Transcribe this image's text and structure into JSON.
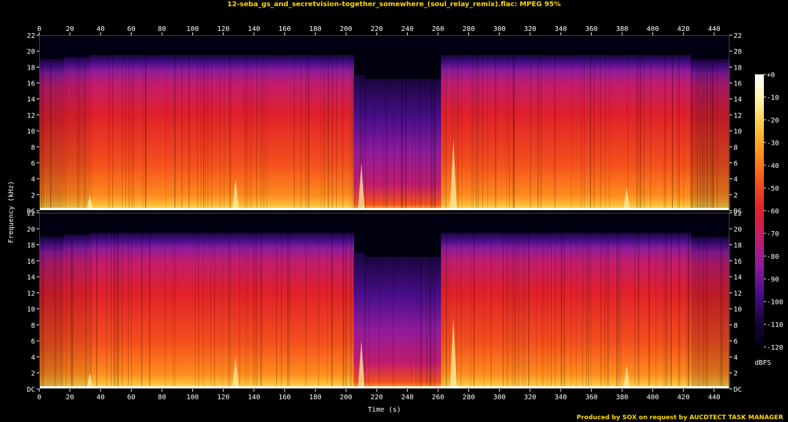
{
  "title": "12-seba_gs_and_secretvision-together_somewhere_(soul_relay_remix).flac: MPEG 95%",
  "credit": "Produced by SOX on request by AUCDTECT TASK MANAGER",
  "chart_data": {
    "type": "heatmap",
    "xlabel": "Time (s)",
    "ylabel": "Frequency (kHz)",
    "xlim": [
      0,
      450
    ],
    "ylim": [
      0,
      22
    ],
    "x_ticks": [
      "0",
      "20",
      "40",
      "60",
      "80",
      "100",
      "120",
      "140",
      "160",
      "180",
      "200",
      "220",
      "240",
      "260",
      "280",
      "300",
      "320",
      "340",
      "360",
      "380",
      "400",
      "420",
      "440"
    ],
    "y_ticks": [
      "DC",
      "2",
      "4",
      "6",
      "8",
      "10",
      "12",
      "14",
      "16",
      "18",
      "20",
      "22"
    ],
    "channels": 2,
    "colorbar": {
      "label": "dBFS",
      "ticks": [
        "+0",
        "-10",
        "-20",
        "-30",
        "-40",
        "-50",
        "-60",
        "-70",
        "-80",
        "-90",
        "-100",
        "-110",
        "-120"
      ],
      "range": [
        -120,
        0
      ]
    },
    "segments": [
      {
        "t_start": 0,
        "t_end": 16,
        "cutoff_khz": 19.0,
        "level": "medium"
      },
      {
        "t_start": 16,
        "t_end": 33,
        "cutoff_khz": 19.3,
        "level": "medium-high"
      },
      {
        "t_start": 33,
        "t_end": 205,
        "cutoff_khz": 19.5,
        "level": "high"
      },
      {
        "t_start": 205,
        "t_end": 212,
        "cutoff_khz": 17.0,
        "level": "transition"
      },
      {
        "t_start": 212,
        "t_end": 262,
        "cutoff_khz": 16.5,
        "level": "low"
      },
      {
        "t_start": 262,
        "t_end": 425,
        "cutoff_khz": 19.5,
        "level": "high"
      },
      {
        "t_start": 425,
        "t_end": 450,
        "cutoff_khz": 19.0,
        "level": "medium"
      }
    ],
    "colors": {
      "title": "#ffd800",
      "background": "#000000",
      "palette": [
        "#000010",
        "#1a0640",
        "#4a0e8a",
        "#8e1c9c",
        "#c01c6e",
        "#e0202a",
        "#f4501c",
        "#ff8a1e",
        "#ffc23a",
        "#fff0a0",
        "#ffffff"
      ]
    }
  }
}
